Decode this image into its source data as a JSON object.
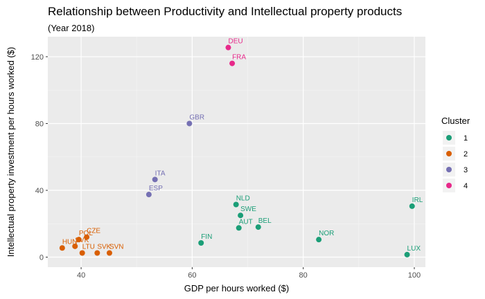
{
  "chart_data": {
    "type": "scatter",
    "title": "Relationship between Productivity and Intellectual property products",
    "subtitle": "(Year 2018)",
    "xlabel": "GDP per hours worked ($)",
    "ylabel": "Intellectual property investment per hours worked ($)",
    "xlim": [
      34,
      102
    ],
    "ylim": [
      -6,
      132
    ],
    "xticks": [
      40,
      60,
      80,
      100
    ],
    "yticks": [
      0,
      40,
      80,
      120
    ],
    "grid": true,
    "legend": {
      "title": "Cluster",
      "position": "right",
      "entries": [
        {
          "label": "1",
          "color": "#1b9e77"
        },
        {
          "label": "2",
          "color": "#d95f02"
        },
        {
          "label": "3",
          "color": "#7570b3"
        },
        {
          "label": "4",
          "color": "#e7298a"
        }
      ]
    },
    "points": [
      {
        "label": "DEU",
        "x": 66.5,
        "y": 125.5,
        "cluster": "4"
      },
      {
        "label": "FRA",
        "x": 67.2,
        "y": 116,
        "cluster": "4"
      },
      {
        "label": "GBR",
        "x": 59.5,
        "y": 80,
        "cluster": "3"
      },
      {
        "label": "ITA",
        "x": 53.3,
        "y": 46.5,
        "cluster": "3"
      },
      {
        "label": "ESP",
        "x": 52.2,
        "y": 37.5,
        "cluster": "3"
      },
      {
        "label": "NLD",
        "x": 67.9,
        "y": 31.5,
        "cluster": "1"
      },
      {
        "label": "IRL",
        "x": 99.6,
        "y": 30.5,
        "cluster": "1"
      },
      {
        "label": "SWE",
        "x": 68.7,
        "y": 25,
        "cluster": "1"
      },
      {
        "label": "AUT",
        "x": 68.4,
        "y": 17.5,
        "cluster": "1"
      },
      {
        "label": "BEL",
        "x": 71.9,
        "y": 18,
        "cluster": "1"
      },
      {
        "label": "NOR",
        "x": 82.8,
        "y": 10.5,
        "cluster": "1"
      },
      {
        "label": "FIN",
        "x": 61.6,
        "y": 8.5,
        "cluster": "1"
      },
      {
        "label": "LUX",
        "x": 98.7,
        "y": 1.5,
        "cluster": "1"
      },
      {
        "label": "CZE",
        "x": 41.0,
        "y": 12,
        "cluster": "2"
      },
      {
        "label": "POL",
        "x": 39.6,
        "y": 10.5,
        "cluster": "2"
      },
      {
        "label": "HUN",
        "x": 36.6,
        "y": 5.5,
        "cluster": "2"
      },
      {
        "label": "SVK",
        "x": 38.9,
        "y": 6.5,
        "cluster": "2"
      },
      {
        "label": "LTU",
        "x": 40.2,
        "y": 2.5,
        "cluster": "2"
      },
      {
        "label": "SVK",
        "x": 42.9,
        "y": 2.5,
        "cluster": "2"
      },
      {
        "label": "SVN",
        "x": 45.1,
        "y": 2.5,
        "cluster": "2"
      }
    ]
  }
}
